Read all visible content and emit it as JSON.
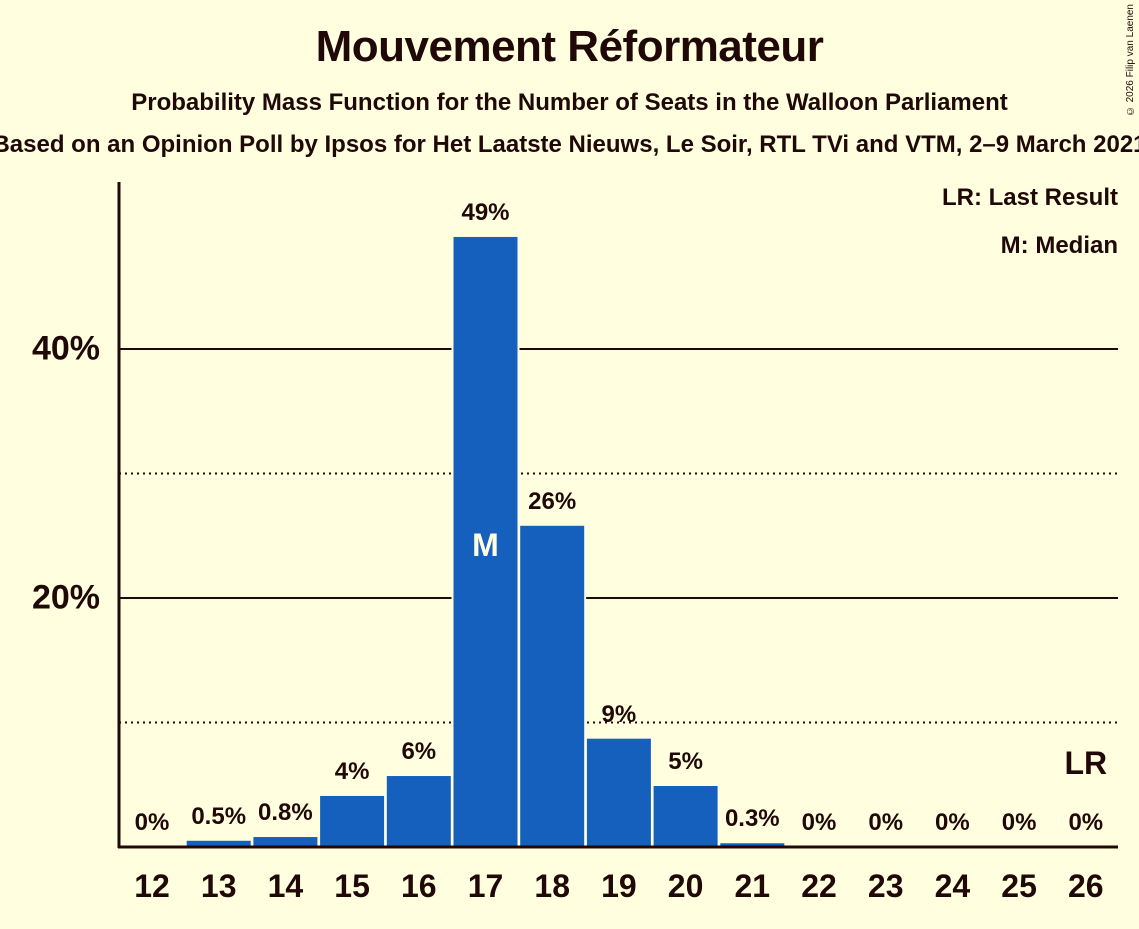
{
  "header": {
    "title": "Mouvement Réformateur",
    "subtitle": "Probability Mass Function for the Number of Seats in the Walloon Parliament",
    "source": "Based on an Opinion Poll by Ipsos for Het Laatste Nieuws, Le Soir, RTL TVi and VTM, 2–9 March 2021",
    "copyright": "© 2026 Filip van Laenen"
  },
  "legend": {
    "last_result": "LR: Last Result",
    "median": "M: Median"
  },
  "colors": {
    "background": "#ffffe0",
    "bar": "#1560bd",
    "text": "#200808"
  },
  "chart_data": {
    "type": "bar",
    "title": "Mouvement Réformateur",
    "subtitle": "Probability Mass Function for the Number of Seats in the Walloon Parliament",
    "xlabel": "",
    "ylabel": "",
    "categories": [
      "12",
      "13",
      "14",
      "15",
      "16",
      "17",
      "18",
      "19",
      "20",
      "21",
      "22",
      "23",
      "24",
      "25",
      "26"
    ],
    "values": [
      0,
      0.5,
      0.8,
      4.1,
      5.7,
      49,
      25.8,
      8.7,
      4.9,
      0.3,
      0,
      0,
      0,
      0,
      0
    ],
    "value_labels": [
      "0%",
      "0.5%",
      "0.8%",
      "4%",
      "6%",
      "49%",
      "26%",
      "9%",
      "5%",
      "0.3%",
      "0%",
      "0%",
      "0%",
      "0%",
      "0%"
    ],
    "ylim": [
      0,
      53
    ],
    "yticks": [
      {
        "value": 20,
        "label": "20%"
      },
      {
        "value": 40,
        "label": "40%"
      }
    ],
    "minor_gridlines": [
      10,
      30
    ],
    "grid": true,
    "median_seat": "17",
    "median_marker": "M",
    "last_result_seat": "26",
    "last_result_marker": "LR",
    "legend_position": "top-right"
  }
}
